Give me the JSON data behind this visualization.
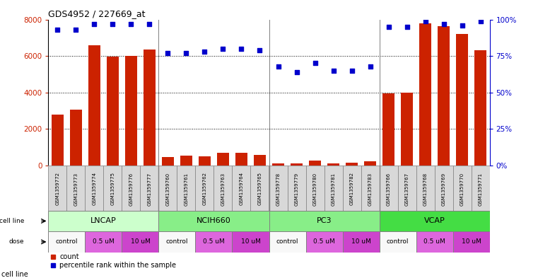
{
  "title": "GDS4952 / 227669_at",
  "samples": [
    "GSM1359772",
    "GSM1359773",
    "GSM1359774",
    "GSM1359775",
    "GSM1359776",
    "GSM1359777",
    "GSM1359760",
    "GSM1359761",
    "GSM1359762",
    "GSM1359763",
    "GSM1359764",
    "GSM1359765",
    "GSM1359778",
    "GSM1359779",
    "GSM1359780",
    "GSM1359781",
    "GSM1359782",
    "GSM1359783",
    "GSM1359766",
    "GSM1359767",
    "GSM1359768",
    "GSM1359769",
    "GSM1359770",
    "GSM1359771"
  ],
  "counts": [
    2800,
    3050,
    6600,
    5950,
    6000,
    6350,
    450,
    540,
    500,
    700,
    700,
    580,
    100,
    120,
    270,
    110,
    160,
    230,
    3950,
    3980,
    7800,
    7650,
    7200,
    6300
  ],
  "percentile_ranks": [
    93,
    93,
    97,
    97,
    97,
    97,
    77,
    77,
    78,
    80,
    80,
    79,
    68,
    64,
    70,
    65,
    65,
    68,
    95,
    95,
    99,
    97,
    96,
    99
  ],
  "bar_color": "#cc2200",
  "dot_color": "#0000cc",
  "ylim_left": [
    0,
    8000
  ],
  "ylim_right": [
    0,
    100
  ],
  "yticks_left": [
    0,
    2000,
    4000,
    6000,
    8000
  ],
  "yticks_right": [
    0,
    25,
    50,
    75,
    100
  ],
  "ytick_labels_right": [
    "0%",
    "25%",
    "50%",
    "75%",
    "100%"
  ],
  "background_color": "#ffffff",
  "cell_line_data": [
    {
      "name": "LNCAP",
      "start": 0,
      "end": 6,
      "color": "#ccffcc"
    },
    {
      "name": "NCIH660",
      "start": 6,
      "end": 12,
      "color": "#88ee88"
    },
    {
      "name": "PC3",
      "start": 12,
      "end": 18,
      "color": "#88ee88"
    },
    {
      "name": "VCAP",
      "start": 18,
      "end": 24,
      "color": "#44dd44"
    }
  ],
  "dose_data": [
    {
      "label": "control",
      "start": 0,
      "end": 2,
      "color": "#f8f8f8"
    },
    {
      "label": "0.5 uM",
      "start": 2,
      "end": 4,
      "color": "#dd66dd"
    },
    {
      "label": "10 uM",
      "start": 4,
      "end": 6,
      "color": "#cc44cc"
    },
    {
      "label": "control",
      "start": 6,
      "end": 8,
      "color": "#f8f8f8"
    },
    {
      "label": "0.5 uM",
      "start": 8,
      "end": 10,
      "color": "#dd66dd"
    },
    {
      "label": "10 uM",
      "start": 10,
      "end": 12,
      "color": "#cc44cc"
    },
    {
      "label": "control",
      "start": 12,
      "end": 14,
      "color": "#f8f8f8"
    },
    {
      "label": "0.5 uM",
      "start": 14,
      "end": 16,
      "color": "#dd66dd"
    },
    {
      "label": "10 uM",
      "start": 16,
      "end": 18,
      "color": "#cc44cc"
    },
    {
      "label": "control",
      "start": 18,
      "end": 20,
      "color": "#f8f8f8"
    },
    {
      "label": "0.5 uM",
      "start": 20,
      "end": 22,
      "color": "#dd66dd"
    },
    {
      "label": "10 uM",
      "start": 22,
      "end": 24,
      "color": "#cc44cc"
    }
  ]
}
